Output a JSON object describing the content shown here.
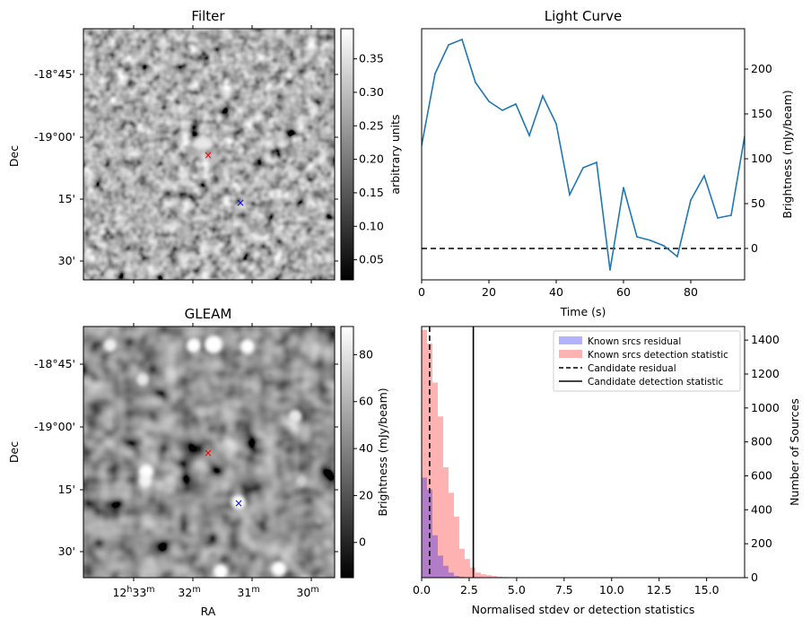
{
  "panels": {
    "filter": {
      "title": "Filter",
      "ylabel": "Dec",
      "dec_ticks": [
        "-18°45'",
        "-19°00'",
        "15'",
        "30'"
      ],
      "colorbar": {
        "label": "arbitrary units",
        "range": [
          0.02,
          0.395
        ],
        "ticks": [
          "0.05",
          "0.10",
          "0.15",
          "0.20",
          "0.25",
          "0.30",
          "0.35"
        ],
        "tick_values": [
          0.05,
          0.1,
          0.15,
          0.2,
          0.25,
          0.3,
          0.35
        ]
      }
    },
    "gleam": {
      "title": "GLEAM",
      "ylabel": "Dec",
      "xlabel": "RA",
      "dec_ticks": [
        "-18°45'",
        "-19°00'",
        "15'",
        "30'"
      ],
      "ra_ticks": [
        {
          "main": "12",
          "h": "h",
          "min": "33",
          "m": "m"
        },
        {
          "main": "",
          "h": "",
          "min": "32",
          "m": "m"
        },
        {
          "main": "",
          "h": "",
          "min": "31",
          "m": "m"
        },
        {
          "main": "",
          "h": "",
          "min": "30",
          "m": "m"
        }
      ],
      "colorbar": {
        "label": "Brightness (mJy/beam)",
        "range": [
          -15,
          92
        ],
        "ticks": [
          "0",
          "20",
          "40",
          "60",
          "80"
        ],
        "tick_values": [
          0,
          20,
          40,
          60,
          80
        ]
      }
    }
  },
  "chart_data": [
    {
      "type": "line",
      "title": "Light Curve",
      "xlabel": "Time (s)",
      "ylabel": "Brightness (mJy/beam)",
      "xlim": [
        0,
        96
      ],
      "ylim": [
        -35,
        245
      ],
      "xticks": [
        0,
        20,
        40,
        60,
        80
      ],
      "yticks": [
        0,
        50,
        100,
        150,
        200
      ],
      "x": [
        0,
        4,
        8,
        12,
        16,
        20,
        24,
        28,
        32,
        36,
        40,
        44,
        48,
        52,
        56,
        60,
        64,
        68,
        72,
        76,
        80,
        84,
        88,
        92,
        96
      ],
      "y": [
        115,
        195,
        227,
        233,
        185,
        164,
        154,
        161,
        126,
        170,
        139,
        60,
        90,
        96,
        -24,
        68,
        13,
        9,
        3,
        -9,
        54,
        81,
        34,
        37,
        125
      ],
      "baseline": 0,
      "color": "#1f77b4"
    },
    {
      "type": "bar",
      "xlabel": "Normalised stdev or detection statistics",
      "ylabel": "Number of Sources",
      "xlim": [
        0,
        17
      ],
      "ylim": [
        0,
        1480
      ],
      "xticks": [
        "0.0",
        "2.5",
        "5.0",
        "7.5",
        "10.0",
        "12.5",
        "15.0"
      ],
      "xtick_values": [
        0,
        2.5,
        5,
        7.5,
        10,
        12.5,
        15
      ],
      "yticks": [
        0,
        200,
        400,
        600,
        800,
        1000,
        1200,
        1400
      ],
      "bin_width": 0.283,
      "series": [
        {
          "name": "Known srcs residual",
          "color": "#0000ff",
          "alpha": 0.3,
          "values": [
            590,
            520,
            250,
            130,
            70,
            30,
            10,
            5
          ]
        },
        {
          "name": "Known srcs detection statistic",
          "color": "#ff0000",
          "alpha": 0.3,
          "values": [
            1460,
            1380,
            1150,
            950,
            650,
            500,
            360,
            170,
            110,
            60,
            30,
            20,
            15,
            10,
            6,
            4,
            3,
            2,
            2,
            2,
            1,
            1,
            1,
            1,
            1,
            1,
            1,
            1,
            1,
            1,
            1,
            1,
            1,
            1,
            1,
            1,
            1,
            1,
            1,
            1,
            1,
            1,
            1,
            1,
            1,
            1,
            1,
            1,
            1,
            1,
            1,
            1,
            1,
            1,
            1,
            1,
            1,
            1
          ]
        }
      ],
      "vlines": [
        {
          "name": "Candidate residual",
          "x": 0.42,
          "style": "dashed"
        },
        {
          "name": "Candidate detection statistic",
          "x": 2.72,
          "style": "solid"
        }
      ],
      "legend_position": "top-right"
    }
  ]
}
